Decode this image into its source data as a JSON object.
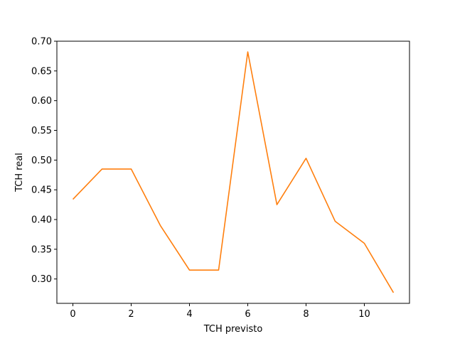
{
  "chart_data": {
    "type": "line",
    "title": "",
    "xlabel": "TCH previsto",
    "ylabel": "TCH real",
    "x": [
      0,
      1,
      2,
      3,
      4,
      5,
      6,
      7,
      8,
      9,
      10,
      11
    ],
    "series": [
      {
        "values": [
          0.434,
          0.485,
          0.485,
          0.39,
          0.315,
          0.315,
          0.682,
          0.425,
          0.503,
          0.397,
          0.36,
          0.277
        ],
        "color": "#ff7f0e"
      }
    ],
    "xlim": [
      -0.55,
      11.55
    ],
    "ylim": [
      0.259,
      0.7
    ],
    "xticks": [
      0,
      2,
      4,
      6,
      8,
      10
    ],
    "xtick_labels": [
      "0",
      "2",
      "4",
      "6",
      "8",
      "10"
    ],
    "yticks": [
      0.3,
      0.35,
      0.4,
      0.45,
      0.5,
      0.55,
      0.6,
      0.65,
      0.7
    ],
    "ytick_labels": [
      "0.30",
      "0.35",
      "0.40",
      "0.45",
      "0.50",
      "0.55",
      "0.60",
      "0.65",
      "0.70"
    ],
    "grid": false,
    "legend": "none"
  }
}
